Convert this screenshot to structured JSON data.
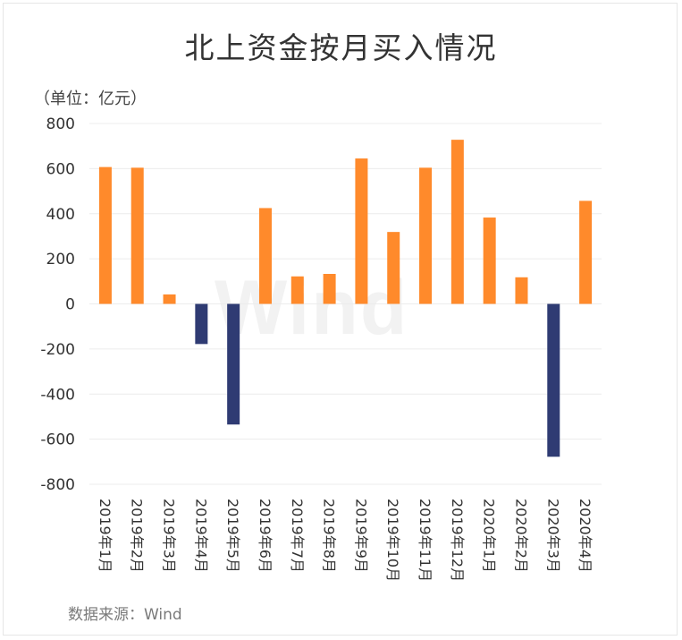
{
  "colors": {
    "positive": "#ff8a2b",
    "negative": "#2f3b73",
    "grid": "#ececec"
  },
  "chart_data": {
    "type": "bar",
    "title": "北上资金按月买入情况",
    "unit": "（单位：亿元）",
    "source": "数据来源：Wind",
    "watermark": "Wind",
    "categories": [
      "2019年1月",
      "2019年2月",
      "2019年3月",
      "2019年4月",
      "2019年5月",
      "2019年6月",
      "2019年7月",
      "2019年8月",
      "2019年9月",
      "2019年10月",
      "2019年11月",
      "2019年12月",
      "2020年1月",
      "2020年2月",
      "2020年3月",
      "2020年4月"
    ],
    "values": [
      607,
      604,
      42,
      -178,
      -535,
      425,
      122,
      133,
      645,
      319,
      604,
      728,
      383,
      118,
      -678,
      457
    ],
    "ylim": [
      -800,
      800
    ],
    "yticks": [
      800,
      600,
      400,
      200,
      0,
      -200,
      -400,
      -600,
      -800
    ],
    "grid": true,
    "legend": false
  }
}
